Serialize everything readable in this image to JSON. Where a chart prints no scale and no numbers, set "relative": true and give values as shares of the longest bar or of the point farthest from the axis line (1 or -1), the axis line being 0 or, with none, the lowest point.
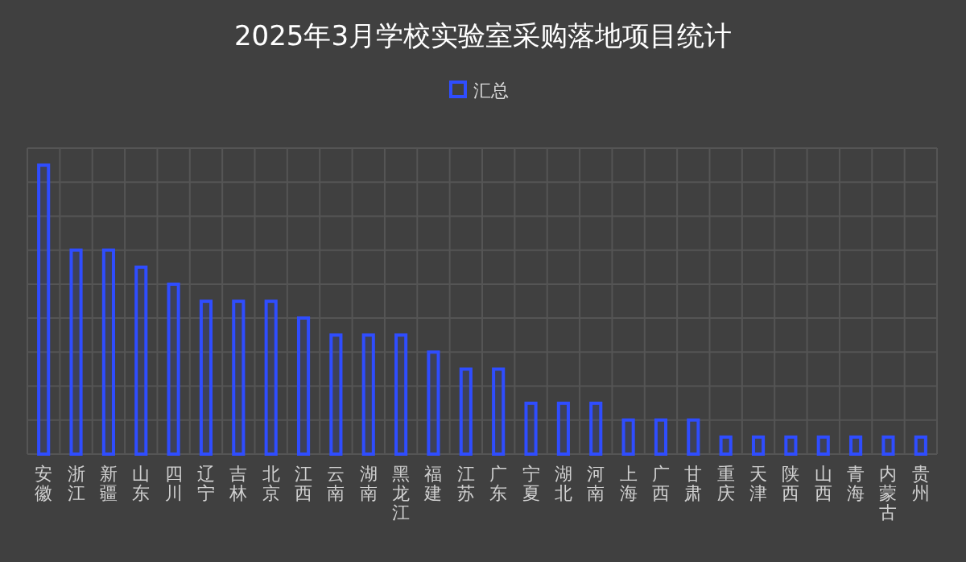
{
  "chart_data": {
    "type": "bar",
    "title": "2025年3月学校实验室采购落地项目统计",
    "relative": true,
    "grid": true,
    "legend": "top",
    "categories": [
      "安徽",
      "浙江",
      "新疆",
      "山东",
      "四川",
      "辽宁",
      "吉林",
      "北京",
      "江西",
      "云南",
      "湖南",
      "黑龙江",
      "福建",
      "江苏",
      "广东",
      "宁夏",
      "湖北",
      "河南",
      "上海",
      "广西",
      "甘肃",
      "重庆",
      "天津",
      "陕西",
      "山西",
      "青海",
      "内蒙古",
      "贵州"
    ],
    "series": [
      {
        "name": "汇总",
        "color": "#2f4dff",
        "values": [
          1,
          0.706,
          0.706,
          0.647,
          0.588,
          0.529,
          0.529,
          0.529,
          0.471,
          0.412,
          0.412,
          0.412,
          0.353,
          0.294,
          0.294,
          0.176,
          0.176,
          0.176,
          0.118,
          0.118,
          0.118,
          0.059,
          0.059,
          0.059,
          0.059,
          0.059,
          0.059,
          0.059
        ]
      }
    ]
  }
}
